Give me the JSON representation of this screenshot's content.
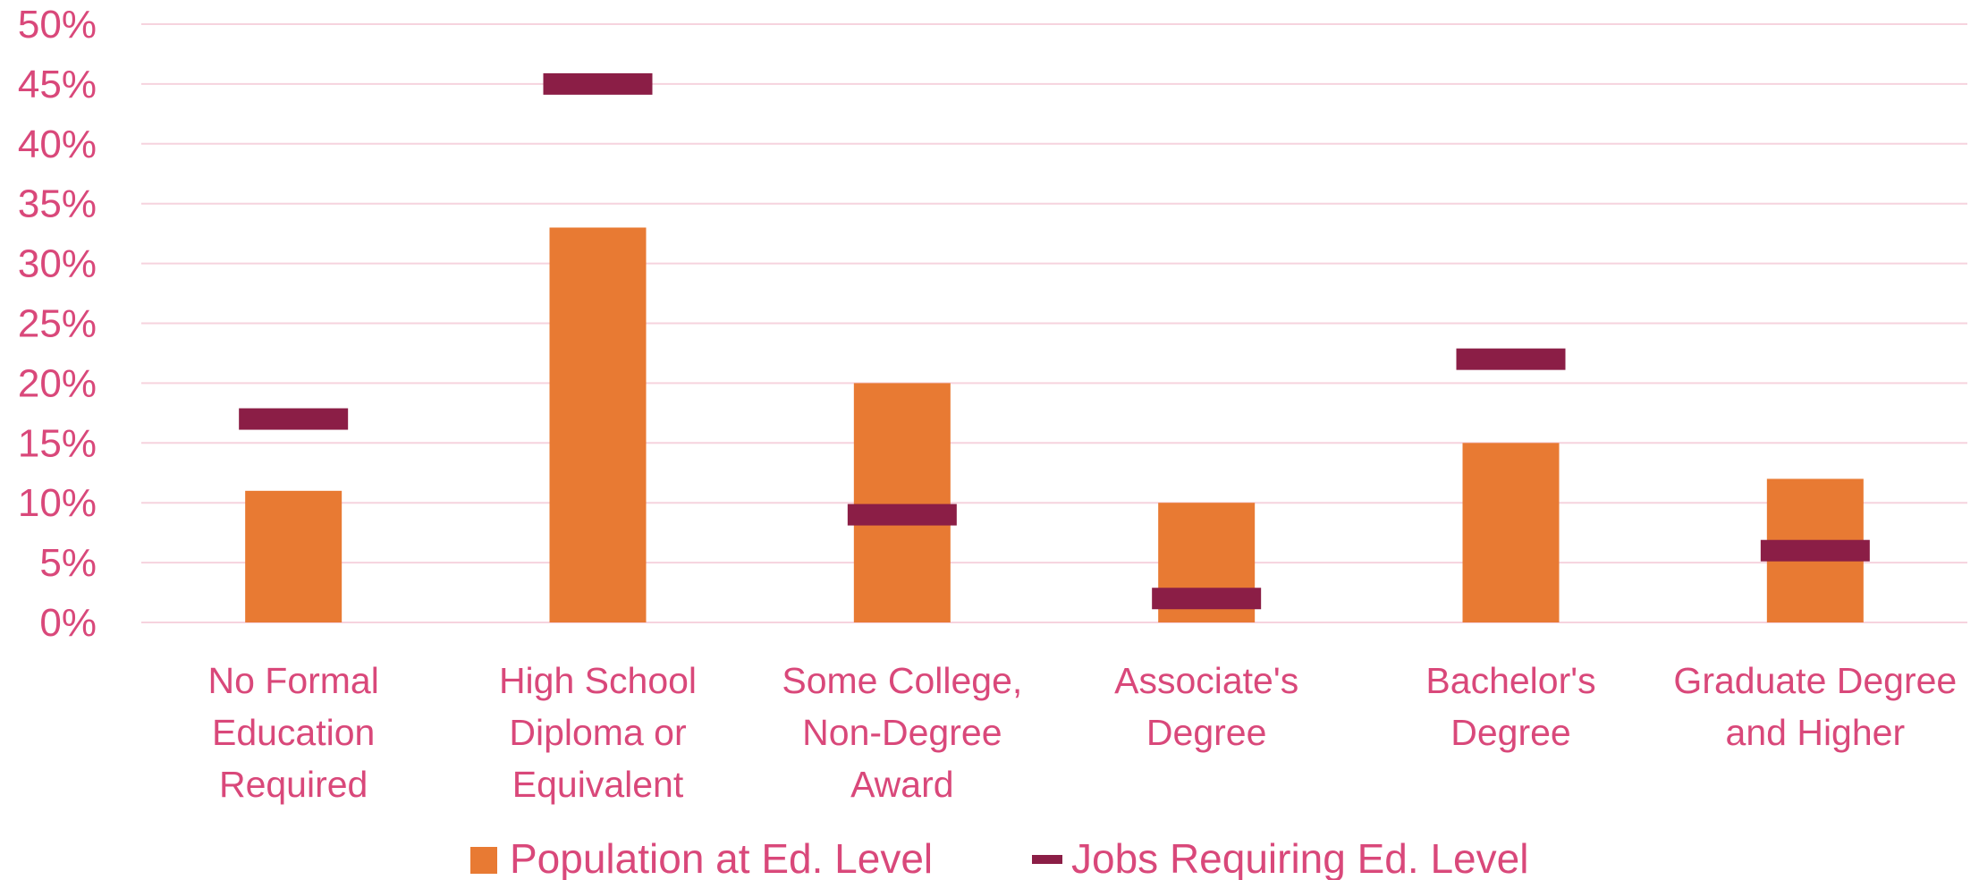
{
  "chart_data": {
    "type": "bar",
    "categories": [
      [
        "No Formal",
        "Education",
        "Required"
      ],
      [
        "High School",
        "Diploma or",
        "Equivalent"
      ],
      [
        "Some College,",
        "Non-Degree",
        "Award"
      ],
      [
        "Associate's",
        "Degree"
      ],
      [
        "Bachelor's",
        "Degree"
      ],
      [
        "Graduate Degree",
        "and Higher"
      ]
    ],
    "series": [
      {
        "name": "Population at Ed. Level",
        "type": "bar",
        "values": [
          11,
          33,
          20,
          10,
          15,
          12
        ]
      },
      {
        "name": "Jobs Requiring Ed. Level",
        "type": "marker",
        "values": [
          17,
          45,
          9,
          2,
          22,
          6
        ]
      }
    ],
    "y_ticks": [
      "0%",
      "5%",
      "10%",
      "15%",
      "20%",
      "25%",
      "30%",
      "35%",
      "40%",
      "45%",
      "50%"
    ],
    "ylim": [
      0,
      50
    ],
    "grid": true,
    "legend_position": "bottom",
    "colors": {
      "bars": "#E87A33",
      "markers": "#8B1E46",
      "text": "#D9487A",
      "gridline": "#F6D3DE"
    }
  }
}
